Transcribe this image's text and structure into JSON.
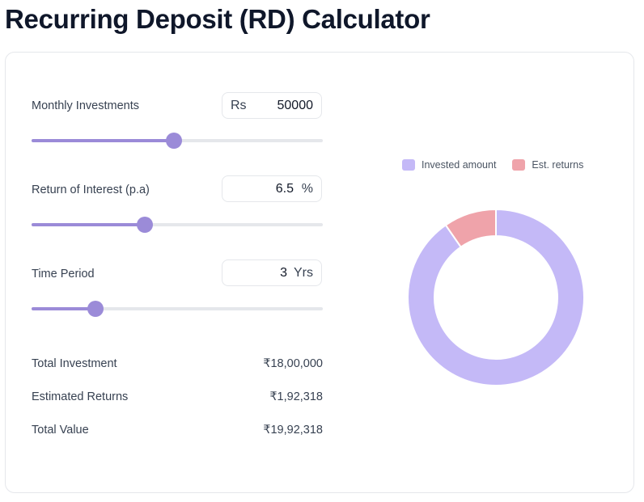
{
  "title": "Recurring Deposit (RD) Calculator",
  "inputs": {
    "monthly": {
      "label": "Monthly Investments",
      "prefix": "Rs",
      "value": "50000",
      "slider_fraction": 0.49
    },
    "interest": {
      "label": "Return of Interest (p.a)",
      "value": "6.5",
      "suffix": "%",
      "slider_fraction": 0.39
    },
    "period": {
      "label": "Time Period",
      "value": "3",
      "suffix": "Yrs",
      "slider_fraction": 0.22
    }
  },
  "summary": {
    "total_investment": {
      "label": "Total Investment",
      "value": "₹18,00,000"
    },
    "estimated_returns": {
      "label": "Estimated Returns",
      "value": "₹1,92,318"
    },
    "total_value": {
      "label": "Total Value",
      "value": "₹19,92,318"
    }
  },
  "legend": {
    "invested": "Invested amount",
    "returns": "Est. returns"
  },
  "colors": {
    "invested": "#c4b9f7",
    "returns": "#efa3aa",
    "accent": "#9b8bd8"
  },
  "chart_data": {
    "type": "pie",
    "categories": [
      "Invested amount",
      "Est. returns"
    ],
    "values": [
      1800000,
      192318
    ]
  }
}
